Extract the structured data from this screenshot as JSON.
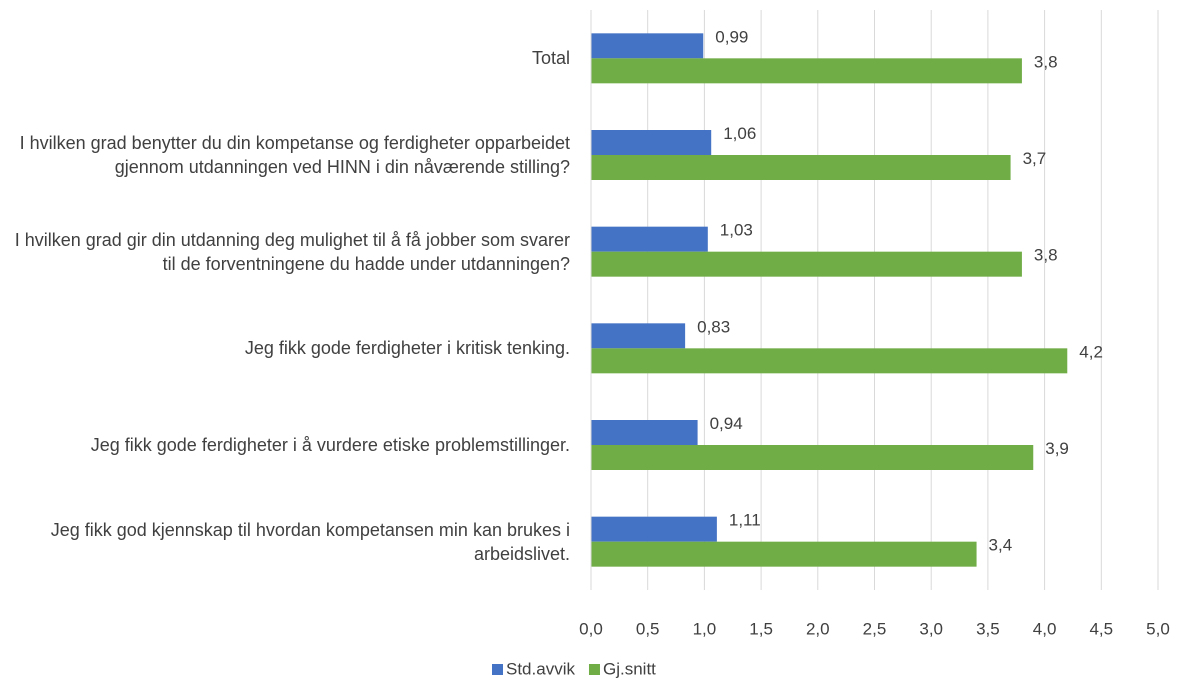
{
  "chart_data": {
    "type": "hbar",
    "categories": [
      "Total",
      "I hvilken grad benytter du din kompetanse og ferdigheter opparbeidet gjennom utdanningen ved HINN i din nåværende stilling?",
      "I hvilken grad gir din utdanning deg mulighet til å få jobber som svarer til de forventningene du hadde under utdanningen?",
      "Jeg fikk gode ferdigheter i kritisk tenking.",
      "Jeg fikk gode ferdigheter i å vurdere etiske problemstillinger.",
      "Jeg fikk god kjennskap til hvordan kompetansen min kan brukes i arbeidslivet."
    ],
    "series": [
      {
        "name": "Std.avvik",
        "color": "#4472c4",
        "values": [
          0.99,
          1.06,
          1.03,
          0.83,
          0.94,
          1.11
        ],
        "value_labels": [
          "0,99",
          "1,06",
          "1,03",
          "0,83",
          "0,94",
          "1,11"
        ]
      },
      {
        "name": "Gj.snitt",
        "color": "#70ad47",
        "values": [
          3.8,
          3.7,
          3.8,
          4.2,
          3.9,
          3.4
        ],
        "value_labels": [
          "3,8",
          "3,7",
          "3,8",
          "4,2",
          "3,9",
          "3,4"
        ]
      }
    ],
    "xlim": [
      0,
      5
    ],
    "xticks": [
      {
        "value": 0,
        "label": "0,0"
      },
      {
        "value": 0.5,
        "label": "0,5"
      },
      {
        "value": 1,
        "label": "1,0"
      },
      {
        "value": 1.5,
        "label": "1,5"
      },
      {
        "value": 2,
        "label": "2,0"
      },
      {
        "value": 2.5,
        "label": "2,5"
      },
      {
        "value": 3,
        "label": "3,0"
      },
      {
        "value": 3.5,
        "label": "3,5"
      },
      {
        "value": 4,
        "label": "4,0"
      },
      {
        "value": 4.5,
        "label": "4,5"
      },
      {
        "value": 5,
        "label": "5,0"
      }
    ],
    "grid": true,
    "legend": "bottom"
  }
}
